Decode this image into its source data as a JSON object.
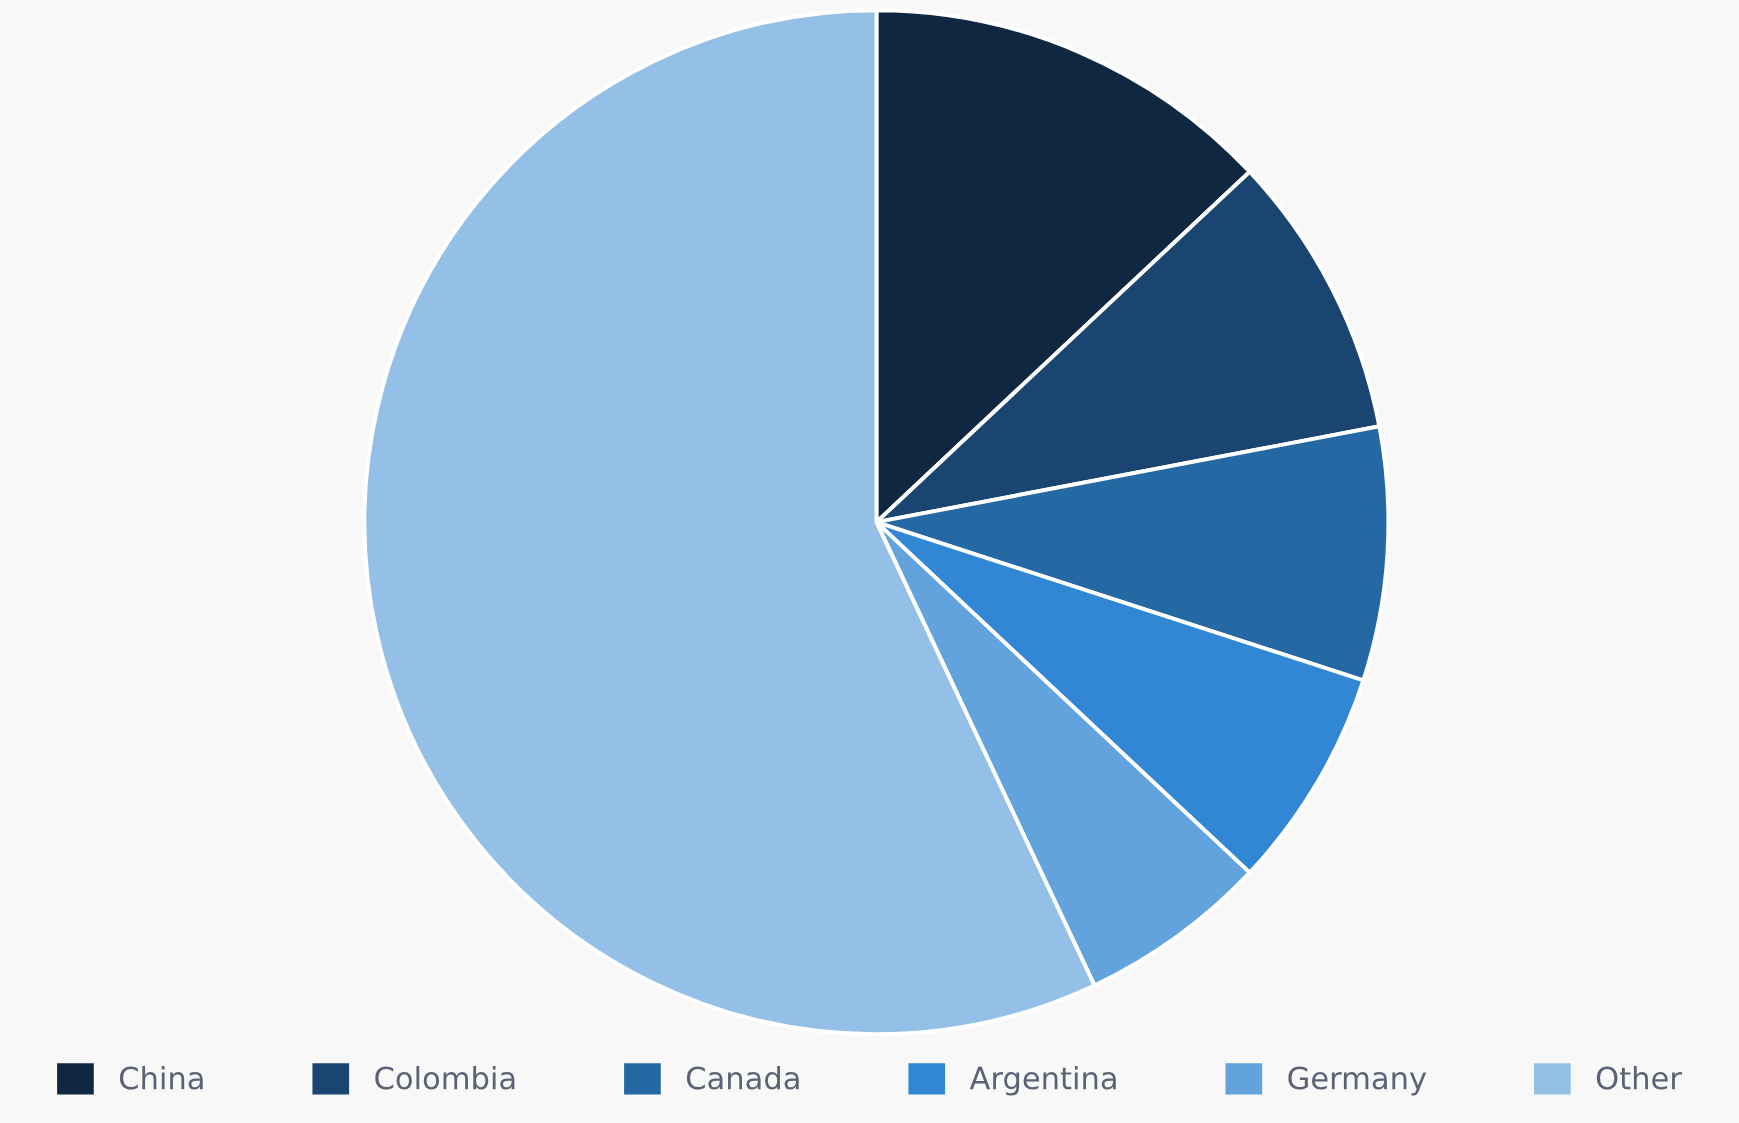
{
  "chart_data": {
    "type": "pie",
    "categories": [
      "China",
      "Colombia",
      "Canada",
      "Argentina",
      "Germany",
      "Other"
    ],
    "values": [
      13,
      9,
      8,
      7,
      6,
      57
    ],
    "colors": [
      "#0f2740",
      "#1a4570",
      "#2468a4",
      "#3187d4",
      "#62a3de",
      "#94c0e8"
    ],
    "legend": "bottom"
  }
}
